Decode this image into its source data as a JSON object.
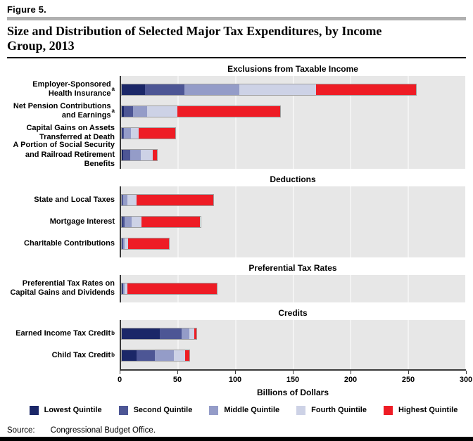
{
  "figure_label": "Figure 5.",
  "title": "Size and Distribution of Selected Major Tax Expenditures, by Income Group, 2013",
  "source": {
    "label": "Source:",
    "text": "Congressional Budget Office."
  },
  "chart_data": {
    "type": "bar",
    "orientation": "horizontal",
    "stacked": true,
    "xlabel": "Billions of Dollars",
    "xlim": [
      0,
      300
    ],
    "xticks": [
      0,
      50,
      100,
      150,
      200,
      250,
      300
    ],
    "grid": "white vertical gridlines on gray panel background",
    "legend_position": "bottom",
    "legend": [
      "Lowest Quintile",
      "Second Quintile",
      "Middle Quintile",
      "Fourth Quintile",
      "Highest Quintile"
    ],
    "series_colors": [
      "#1b2768",
      "#4d5695",
      "#949cc8",
      "#cdd2e6",
      "#ee1c25"
    ],
    "panel_bg_color": "#e7e7e7",
    "panels": [
      {
        "title": "Exclusions from Taxable Income",
        "rows": [
          {
            "label": "Employer-Sponsored Health Insurance",
            "sup": "a",
            "values": [
              20,
              35,
              48,
              67,
              87
            ],
            "total": 257
          },
          {
            "label": "Net Pension Contributions and Earnings",
            "sup": "a",
            "values": [
              2,
              8,
              12,
              27,
              90
            ],
            "total": 139
          },
          {
            "label": "Capital Gains on Assets Transferred at Death",
            "sup": "",
            "values": [
              0.5,
              1.5,
              6,
              7,
              33
            ],
            "total": 48
          },
          {
            "label": "A Portion of  Social Security and Railroad Retirement Benefits",
            "sup": "",
            "values": [
              1,
              6.5,
              10,
              10.5,
              4
            ],
            "total": 32
          }
        ]
      },
      {
        "title": "Deductions",
        "rows": [
          {
            "label": "State and Local Taxes",
            "sup": "",
            "values": [
              0.3,
              1,
              3.5,
              8,
              68
            ],
            "total": 80.8
          },
          {
            "label": "Mortgage Interest",
            "sup": "",
            "values": [
              0.5,
              2,
              6,
              9,
              52
            ],
            "total": 69.5
          },
          {
            "label": "Charitable Contributions",
            "sup": "",
            "values": [
              0.3,
              0.7,
              1.5,
              3,
              37
            ],
            "total": 42.5
          }
        ]
      },
      {
        "title": "Preferential Tax Rates",
        "rows": [
          {
            "label": "Preferential Tax Rates on Capital Gains and Dividends",
            "sup": "",
            "values": [
              0.4,
              0.8,
              1.3,
              2.5,
              79
            ],
            "total": 84
          }
        ]
      },
      {
        "title": "Credits",
        "rows": [
          {
            "label": "Earned Income Tax Credit",
            "sup": "b",
            "values": [
              33.5,
              19.5,
              7,
              4,
              2
            ],
            "total": 66
          },
          {
            "label": "Child Tax Credit",
            "sup": "b",
            "values": [
              13,
              16.5,
              16.5,
              10,
              4
            ],
            "total": 60
          }
        ]
      }
    ]
  }
}
